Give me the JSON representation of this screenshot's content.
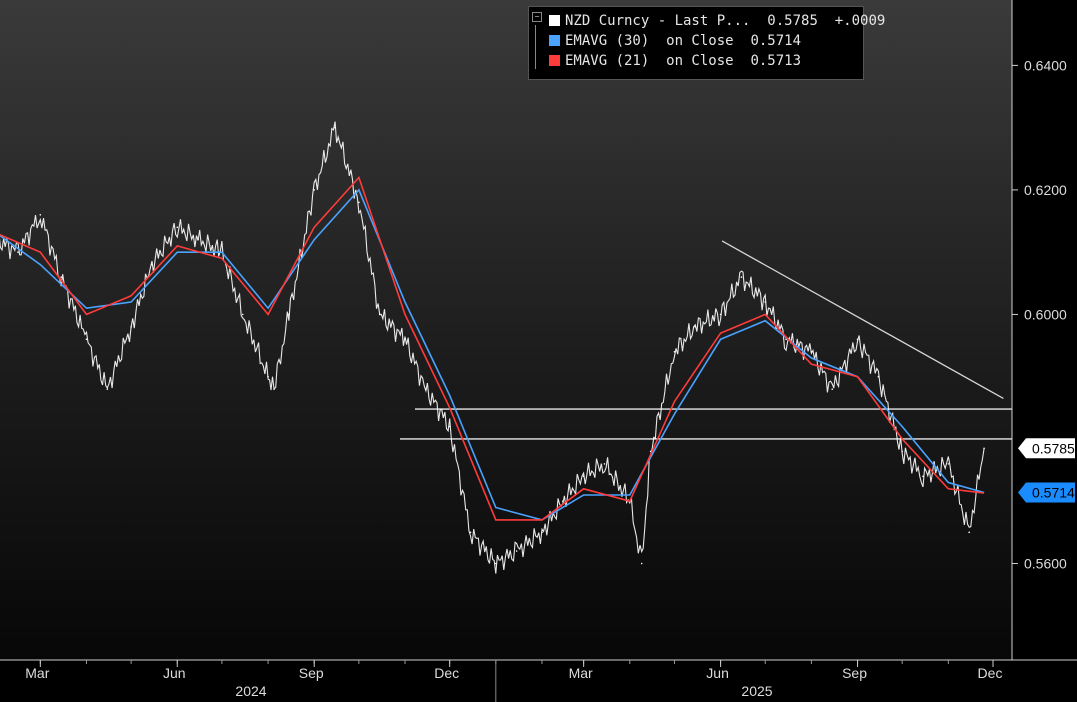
{
  "chart_data": {
    "type": "line",
    "title": "",
    "x_month_labels": [
      "Mar",
      "Jun",
      "Sep",
      "Dec",
      "Mar",
      "Jun",
      "Sep",
      "Dec"
    ],
    "x_year_labels": [
      "2024",
      "2025"
    ],
    "ylim": [
      0.5445,
      0.6505
    ],
    "y_ticks": [
      "0.6400",
      "0.6200",
      "0.6000",
      "0.5600"
    ],
    "grid": false,
    "legend_position": "top-right",
    "legend": [
      {
        "name": "NZD Curncy - Last P...",
        "value": "0.5785",
        "change": "+.0009",
        "color": "#ffffff"
      },
      {
        "name": "EMAVG (30)  on Close",
        "value": "0.5714",
        "color": "#4aa3ff"
      },
      {
        "name": "EMAVG (21)  on Close",
        "value": "0.5713",
        "color": "#ff3b3b"
      }
    ],
    "value_labels": [
      {
        "text": "0.5785",
        "value": 0.5785,
        "bg": "#ffffff",
        "fg": "#000000"
      },
      {
        "text": "0.5714",
        "value": 0.5714,
        "bg": "#1a8cff",
        "fg": "#000000"
      }
    ],
    "horizontal_lines": [
      0.5848,
      0.58
    ],
    "trendline": {
      "from": {
        "date": "2025-06-02",
        "value": 0.6118
      },
      "to": {
        "date": "2025-12-08",
        "value": 0.5865
      }
    },
    "series": [
      {
        "name": "NZD Curncy",
        "color": "#ffffff",
        "x": [
          "2024-01-15",
          "2024-02-01",
          "2024-02-15",
          "2024-03-01",
          "2024-03-15",
          "2024-04-01",
          "2024-04-15",
          "2024-05-01",
          "2024-05-15",
          "2024-06-01",
          "2024-06-15",
          "2024-07-01",
          "2024-07-15",
          "2024-08-01",
          "2024-08-05",
          "2024-08-15",
          "2024-09-01",
          "2024-09-15",
          "2024-10-01",
          "2024-10-15",
          "2024-11-01",
          "2024-11-15",
          "2024-12-01",
          "2024-12-15",
          "2025-01-01",
          "2025-01-15",
          "2025-02-01",
          "2025-02-15",
          "2025-03-01",
          "2025-03-15",
          "2025-04-01",
          "2025-04-09",
          "2025-04-15",
          "2025-05-01",
          "2025-05-15",
          "2025-06-01",
          "2025-06-15",
          "2025-07-01",
          "2025-07-15",
          "2025-08-01",
          "2025-08-15",
          "2025-09-01",
          "2025-09-15",
          "2025-10-01",
          "2025-10-15",
          "2025-11-01",
          "2025-11-15",
          "2025-11-25"
        ],
        "values": [
          0.622,
          0.612,
          0.61,
          0.616,
          0.606,
          0.596,
          0.588,
          0.598,
          0.608,
          0.614,
          0.612,
          0.61,
          0.6,
          0.59,
          0.588,
          0.6,
          0.62,
          0.63,
          0.618,
          0.6,
          0.596,
          0.588,
          0.582,
          0.565,
          0.56,
          0.562,
          0.565,
          0.57,
          0.574,
          0.576,
          0.57,
          0.56,
          0.578,
          0.594,
          0.598,
          0.6,
          0.606,
          0.602,
          0.596,
          0.594,
          0.588,
          0.596,
          0.59,
          0.578,
          0.574,
          0.576,
          0.565,
          0.5785
        ]
      },
      {
        "name": "EMAVG (30)",
        "color": "#4aa3ff",
        "x": [
          "2024-01-01",
          "2024-02-01",
          "2024-03-01",
          "2024-04-01",
          "2024-05-01",
          "2024-06-01",
          "2024-07-01",
          "2024-08-01",
          "2024-09-01",
          "2024-10-01",
          "2024-11-01",
          "2024-12-01",
          "2025-01-01",
          "2025-02-01",
          "2025-03-01",
          "2025-04-01",
          "2025-05-01",
          "2025-06-01",
          "2025-07-01",
          "2025-08-01",
          "2025-09-01",
          "2025-10-01",
          "2025-11-01",
          "2025-11-25"
        ],
        "values": [
          0.62,
          0.613,
          0.608,
          0.601,
          0.602,
          0.61,
          0.61,
          0.601,
          0.612,
          0.62,
          0.602,
          0.587,
          0.569,
          0.567,
          0.571,
          0.571,
          0.584,
          0.596,
          0.599,
          0.593,
          0.59,
          0.582,
          0.573,
          0.5714
        ]
      },
      {
        "name": "EMAVG (21)",
        "color": "#ff3b3b",
        "x": [
          "2024-01-01",
          "2024-02-01",
          "2024-03-01",
          "2024-04-01",
          "2024-05-01",
          "2024-06-01",
          "2024-07-01",
          "2024-08-01",
          "2024-09-01",
          "2024-10-01",
          "2024-11-01",
          "2024-12-01",
          "2025-01-01",
          "2025-02-01",
          "2025-03-01",
          "2025-04-01",
          "2025-05-01",
          "2025-06-01",
          "2025-07-01",
          "2025-08-01",
          "2025-09-01",
          "2025-10-01",
          "2025-11-01",
          "2025-11-25"
        ],
        "values": [
          0.621,
          0.613,
          0.61,
          0.6,
          0.603,
          0.611,
          0.609,
          0.6,
          0.614,
          0.622,
          0.6,
          0.585,
          0.567,
          0.567,
          0.572,
          0.57,
          0.586,
          0.597,
          0.6,
          0.592,
          0.59,
          0.58,
          0.572,
          0.5713
        ]
      }
    ]
  }
}
